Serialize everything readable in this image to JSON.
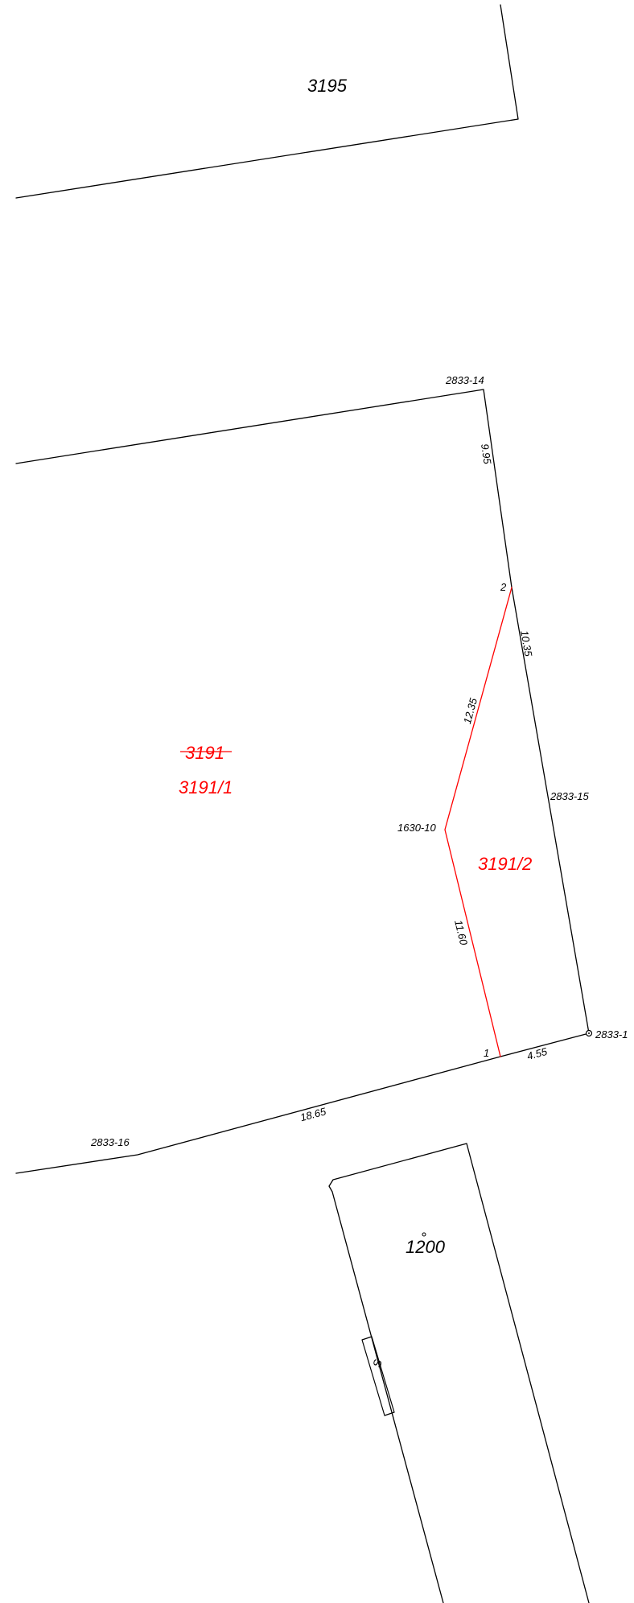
{
  "colors": {
    "existing_line": "#000000",
    "new_line": "#ff0000"
  },
  "parcels": {
    "p3195": "3195",
    "p3191_old": "3191",
    "p3191_1": "3191/1",
    "p3191_2": "3191/2",
    "p1200": "1200"
  },
  "points": {
    "pt_2833_14": "2833-14",
    "pt_2833_15": "2833-15",
    "pt_2833_16": "2833-16",
    "pt_2833_1x": "2833-1",
    "pt_1630_10": "1630-10",
    "pt_1": "1",
    "pt_2": "2"
  },
  "measurements": {
    "m_9_95": "9.95",
    "m_10_35": "10.35",
    "m_12_35": "12.35",
    "m_11_60": "11.60",
    "m_4_55": "4.55",
    "m_18_65": "18.65"
  },
  "building": {
    "marker": "S"
  }
}
